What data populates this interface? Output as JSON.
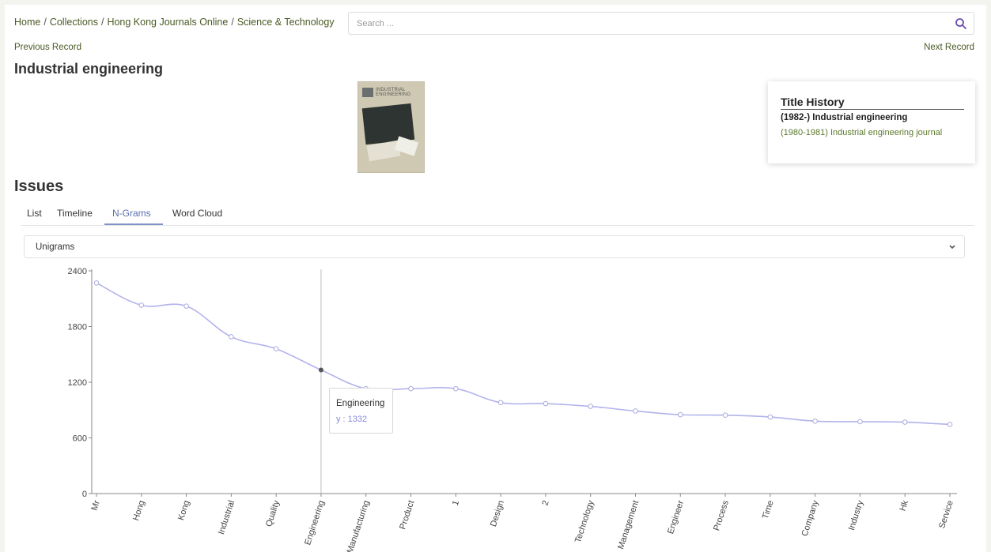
{
  "breadcrumb": [
    "Home",
    "Collections",
    "Hong Kong Journals Online",
    "Science & Technology"
  ],
  "search": {
    "placeholder": "Search ..."
  },
  "nav": {
    "previous": "Previous Record",
    "next": "Next Record"
  },
  "page_title": "Industrial engineering",
  "cover": {
    "text_line1": "INDUSTRIAL",
    "text_line2": "ENGINEERING"
  },
  "title_history": {
    "heading": "Title History",
    "current": "(1982-) Industrial engineering",
    "previous": "(1980-1981) Industrial engineering journal"
  },
  "issues": {
    "heading": "Issues",
    "tabs": [
      "List",
      "Timeline",
      "N-Grams",
      "Word Cloud"
    ],
    "active_tab": "N-Grams",
    "select_value": "Unigrams"
  },
  "tooltip": {
    "title": "Engineering",
    "value": "y : 1332"
  },
  "colors": {
    "accent_green": "#4a5a24",
    "line": "#b3b3ec",
    "tab_active": "#5a6fb0"
  },
  "chart_data": {
    "type": "line",
    "categories": [
      "Mr",
      "Hong",
      "Kong",
      "Industrial",
      "Quality",
      "Engineering",
      "Manufacturing",
      "Product",
      "1",
      "Design",
      "2",
      "Technology",
      "Management",
      "Engineer",
      "Process",
      "Time",
      "Company",
      "Industry",
      "Hk",
      "Service"
    ],
    "values": [
      2270,
      2030,
      2020,
      1690,
      1560,
      1332,
      1130,
      1130,
      1130,
      980,
      970,
      940,
      890,
      850,
      845,
      825,
      780,
      775,
      770,
      745
    ],
    "yticks": [
      0,
      600,
      1200,
      1800,
      2400
    ],
    "ylim": [
      0,
      2400
    ],
    "highlight": "Engineering"
  }
}
